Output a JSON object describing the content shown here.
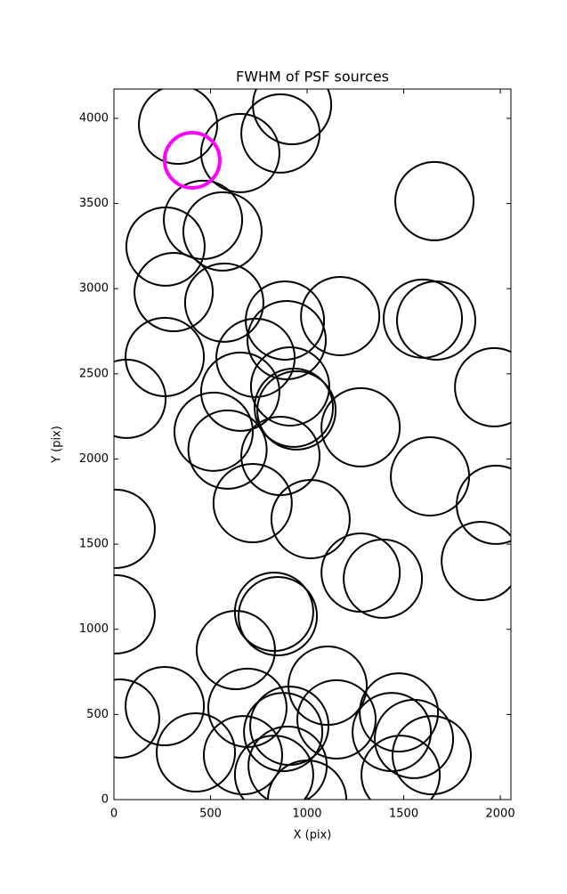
{
  "chart_data": {
    "type": "scatter",
    "title": "FWHM of PSF sources",
    "x_label": "X (pix)",
    "y_label": "Y (pix)",
    "xlim": [
      0,
      2055
    ],
    "ylim": [
      0,
      4172
    ],
    "xticks": [
      0,
      500,
      1000,
      1500,
      2000
    ],
    "yticks": [
      0,
      500,
      1000,
      1500,
      2000,
      2500,
      3000,
      3500,
      4000
    ],
    "series": [
      {
        "color": "#000000",
        "x": [
          332,
          654,
          862,
          922,
          1659,
          461,
          562,
          267,
          309,
          571,
          885,
          894,
          1171,
          1599,
          1668,
          263,
          733,
          1968,
          65,
          654,
          912,
          931,
          945,
          1277,
          516,
          588,
          862,
          1636,
          1977,
          718,
          1018,
          9,
          1899,
          1277,
          1392,
          829,
          848,
          9,
          631,
          1106,
          263,
          32,
          691,
          1475,
          1152,
          908,
          876,
          1438,
          1553,
          424,
          668,
          1645,
          1484,
          899,
          829,
          1000
        ],
        "values": [
          3963,
          3796,
          3911,
          4078,
          3514,
          3404,
          3336,
          3247,
          2980,
          2918,
          2813,
          2698,
          2839,
          2824,
          2813,
          2599,
          2594,
          2421,
          2353,
          2395,
          2426,
          2301,
          2285,
          2186,
          2160,
          2055,
          2018,
          1898,
          1731,
          1741,
          1647,
          1590,
          1401,
          1333,
          1297,
          1103,
          1077,
          1088,
          878,
          669,
          549,
          476,
          539,
          512,
          471,
          434,
          397,
          397,
          356,
          277,
          261,
          261,
          146,
          199,
          146,
          0
        ]
      },
      {
        "color": "#ff00ff",
        "x": [
          405
        ],
        "values": [
          3754
        ]
      }
    ]
  }
}
